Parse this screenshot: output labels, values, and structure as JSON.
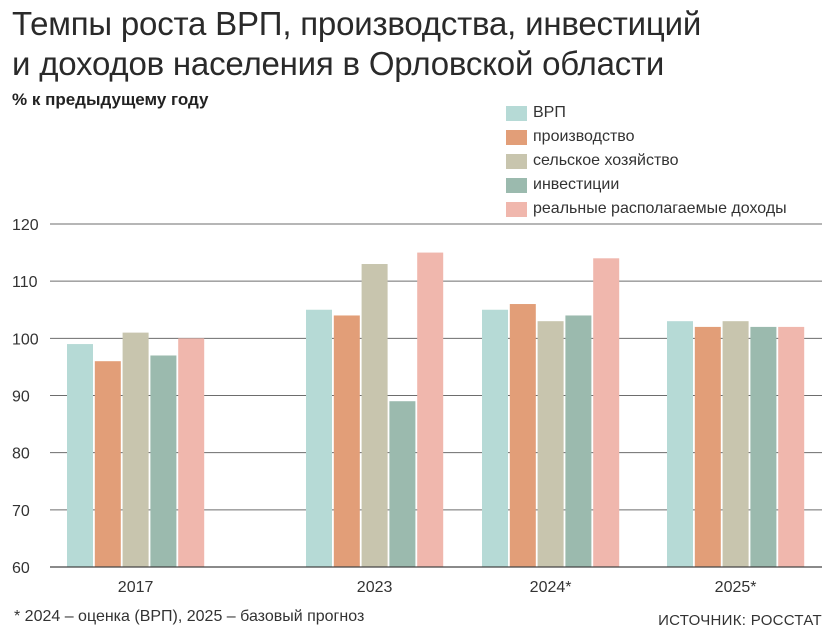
{
  "title_line1": "Темпы роста ВРП, производства, инвестиций",
  "title_line2": "и доходов населения в Орловской области",
  "subtitle": "% к предыдущему году",
  "footnote": "* 2024 – оценка (ВРП), 2025 – базовый прогноз",
  "source": "ИСТОЧНИК: РОССТАТ",
  "chart_data": {
    "type": "bar",
    "categories": [
      "2017",
      "2023",
      "2024*",
      "2025*"
    ],
    "ylim": [
      60,
      120
    ],
    "yticks": [
      60,
      70,
      80,
      90,
      100,
      110,
      120
    ],
    "grid": true,
    "legend_position": "top-right",
    "series": [
      {
        "name": "ВРП",
        "color": "#b6dad6",
        "values": [
          99,
          105,
          105,
          103
        ]
      },
      {
        "name": "производство",
        "color": "#e29e78",
        "values": [
          96,
          104,
          106,
          102
        ]
      },
      {
        "name": "сельское хозяйство",
        "color": "#c8c5ae",
        "values": [
          101,
          113,
          103,
          103
        ]
      },
      {
        "name": "инвестиции",
        "color": "#9bbaae",
        "values": [
          97,
          89,
          104,
          102
        ]
      },
      {
        "name": "реальные располагаемые доходы",
        "color": "#f0b7ad",
        "values": [
          100,
          115,
          114,
          102
        ]
      }
    ]
  }
}
